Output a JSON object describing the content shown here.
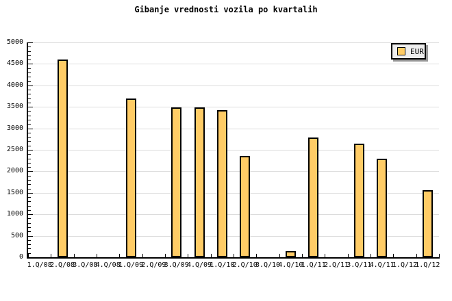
{
  "title": "Gibanje vrednosti vozila po kvartalih",
  "legend": {
    "label": "EUR"
  },
  "colors": {
    "bar_fill": "#FFCC66",
    "bar_border": "#000000",
    "grid": "#DCDCDC",
    "axis": "#000000",
    "legend_bg": "#EEEEEE",
    "legend_shadow": "#999999",
    "background": "#FFFFFF"
  },
  "chart_data": {
    "type": "bar",
    "title": "Gibanje vrednosti vozila po kvartalih",
    "categories": [
      "1.Q/08",
      "2.Q/08",
      "3.Q/08",
      "4.Q/08",
      "1.Q/09",
      "2.Q/09",
      "3.Q/09",
      "4.Q/09",
      "1.Q/10",
      "2.Q/10",
      "3.Q/10",
      "4.Q/10",
      "1.Q/11",
      "2.Q/11",
      "3.Q/11",
      "4.Q/11",
      "1.Q/12",
      "1.Q/12"
    ],
    "series": [
      {
        "name": "EUR",
        "color": "#FFCC66",
        "values": [
          null,
          4600,
          null,
          null,
          3690,
          null,
          3480,
          3480,
          3420,
          2360,
          null,
          150,
          2780,
          null,
          2640,
          2290,
          null,
          1560
        ]
      }
    ],
    "xlabel": "",
    "ylabel": "",
    "ylim": [
      0,
      5000
    ],
    "ytick_major": 500,
    "ytick_minor": 100,
    "grid": true,
    "legend_position": "top-right"
  }
}
